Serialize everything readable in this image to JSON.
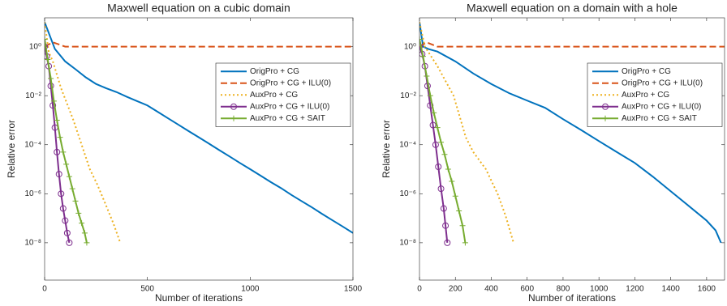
{
  "chart_data": [
    {
      "type": "line",
      "title": "Maxwell equation on a cubic domain",
      "xlabel": "Number of iterations",
      "ylabel": "Relative error",
      "xlim": [
        0,
        1500
      ],
      "xticks": [
        0,
        500,
        1000,
        1500
      ],
      "ylim": [
        3e-10,
        15
      ],
      "yscale": "log",
      "yticks": [
        {
          "value": 1e-08,
          "label": "10⁻⁸"
        },
        {
          "value": 1e-06,
          "label": "10⁻⁶"
        },
        {
          "value": 0.0001,
          "label": "10⁻⁴"
        },
        {
          "value": 0.01,
          "label": "10⁻²"
        },
        {
          "value": 1,
          "label": "10⁰"
        }
      ],
      "grid": false,
      "legend": "northeast",
      "series": [
        {
          "name": "OrigPro + CG",
          "color": "#0072BD",
          "linestyle": "solid",
          "marker": "none",
          "x": [
            0,
            50,
            100,
            150,
            200,
            250,
            300,
            350,
            400,
            450,
            500,
            550,
            600,
            650,
            700,
            750,
            800,
            850,
            900,
            950,
            1000,
            1050,
            1100,
            1150,
            1200,
            1250,
            1300,
            1350,
            1400,
            1450,
            1500
          ],
          "values": [
            10,
            0.8,
            0.25,
            0.12,
            0.056,
            0.03,
            0.02,
            0.014,
            0.009,
            0.006,
            0.004,
            0.0022,
            0.0012,
            0.00066,
            0.00036,
            0.0002,
            0.00011,
            6e-05,
            3.3e-05,
            1.8e-05,
            1e-05,
            5.5e-06,
            3e-06,
            1.7e-06,
            9e-07,
            5e-07,
            2.8e-07,
            1.5e-07,
            8.3e-08,
            4.6e-08,
            2.5e-08
          ]
        },
        {
          "name": "OrigPro + CG + ILU(0)",
          "color": "#D95319",
          "linestyle": "dashed",
          "marker": "none",
          "x": [
            0,
            40,
            100,
            1500
          ],
          "values": [
            1,
            1.5,
            1,
            1
          ]
        },
        {
          "name": "AuxPro + CG",
          "color": "#EDB120",
          "linestyle": "dotted",
          "marker": "none",
          "x": [
            0,
            20,
            40,
            80,
            140,
            180,
            220,
            255,
            295,
            335,
            368
          ],
          "values": [
            10,
            0.6,
            0.25,
            0.02,
            0.001,
            0.0001,
            1e-05,
            2.5e-06,
            4e-07,
            6e-08,
            1e-08
          ]
        },
        {
          "name": "AuxPro + CG + ILU(0)",
          "color": "#7E2F8E",
          "linestyle": "solid",
          "marker": "circle",
          "x": [
            0,
            10,
            20,
            30,
            40,
            50,
            60,
            70,
            80,
            90,
            100,
            110,
            120
          ],
          "values": [
            1,
            0.4,
            0.16,
            0.025,
            0.004,
            0.0005,
            5e-05,
            6.3e-06,
            1e-06,
            2.5e-07,
            8e-08,
            2.5e-08,
            1e-08
          ]
        },
        {
          "name": "AuxPro + CG + SAIT",
          "color": "#77AC30",
          "linestyle": "solid",
          "marker": "plus",
          "x": [
            0,
            15,
            30,
            45,
            60,
            75,
            90,
            105,
            120,
            135,
            150,
            165,
            180,
            195,
            205
          ],
          "values": [
            2,
            0.3,
            0.05,
            0.006,
            0.001,
            0.0002,
            5e-05,
            1.6e-05,
            5e-06,
            1.6e-06,
            5e-07,
            1.6e-07,
            6.3e-08,
            2.5e-08,
            1e-08
          ]
        }
      ]
    },
    {
      "type": "line",
      "title": "Maxwell equation on a domain with a hole",
      "xlabel": "Number of iterations",
      "ylabel": "Relative error",
      "xlim": [
        0,
        1700
      ],
      "xticks": [
        0,
        200,
        400,
        600,
        800,
        1000,
        1200,
        1400,
        1600
      ],
      "ylim": [
        3e-10,
        15
      ],
      "yscale": "log",
      "yticks": [
        {
          "value": 1e-08,
          "label": "10⁻⁸"
        },
        {
          "value": 1e-06,
          "label": "10⁻⁶"
        },
        {
          "value": 0.0001,
          "label": "10⁻⁴"
        },
        {
          "value": 0.01,
          "label": "10⁻²"
        },
        {
          "value": 1,
          "label": "10⁰"
        }
      ],
      "grid": false,
      "legend": "northeast",
      "series": [
        {
          "name": "OrigPro + CG",
          "color": "#0072BD",
          "linestyle": "solid",
          "marker": "none",
          "x": [
            0,
            20,
            50,
            100,
            200,
            300,
            400,
            500,
            600,
            700,
            800,
            900,
            1000,
            1100,
            1200,
            1300,
            1400,
            1500,
            1600,
            1650,
            1680
          ],
          "values": [
            10,
            1,
            0.8,
            0.63,
            0.25,
            0.08,
            0.03,
            0.0126,
            0.0063,
            0.0032,
            0.0011,
            0.0004,
            0.00014,
            5e-05,
            1.8e-05,
            5e-06,
            1.26e-06,
            3.2e-07,
            8e-08,
            3.2e-08,
            1e-08
          ]
        },
        {
          "name": "OrigPro + CG + ILU(0)",
          "color": "#D95319",
          "linestyle": "dashed",
          "marker": "none",
          "x": [
            0,
            40,
            100,
            1700
          ],
          "values": [
            1,
            1.5,
            1,
            1
          ]
        },
        {
          "name": "AuxPro + CG",
          "color": "#EDB120",
          "linestyle": "dotted",
          "marker": "none",
          "x": [
            0,
            30,
            100,
            190,
            258,
            300,
            370,
            435,
            480,
            524
          ],
          "values": [
            10,
            1,
            0.16,
            0.01,
            0.0002,
            5e-05,
            1e-05,
            1e-06,
            1.26e-07,
            1e-08
          ]
        },
        {
          "name": "AuxPro + CG + ILU(0)",
          "color": "#7E2F8E",
          "linestyle": "solid",
          "marker": "circle",
          "x": [
            0,
            15,
            30,
            45,
            60,
            75,
            90,
            105,
            120,
            135,
            145,
            155
          ],
          "values": [
            1,
            0.5,
            0.16,
            0.025,
            0.004,
            0.00063,
            0.0001,
            1.26e-05,
            1.6e-06,
            2.5e-07,
            5e-08,
            1e-08
          ]
        },
        {
          "name": "AuxPro + CG + SAIT",
          "color": "#77AC30",
          "linestyle": "solid",
          "marker": "plus",
          "x": [
            0,
            20,
            40,
            60,
            80,
            100,
            120,
            140,
            160,
            180,
            200,
            220,
            240,
            255
          ],
          "values": [
            2,
            0.4,
            0.063,
            0.01,
            0.002,
            0.0005,
            0.000126,
            4e-05,
            1e-05,
            3.2e-06,
            8e-07,
            2e-07,
            5e-08,
            1e-08
          ]
        }
      ]
    }
  ]
}
